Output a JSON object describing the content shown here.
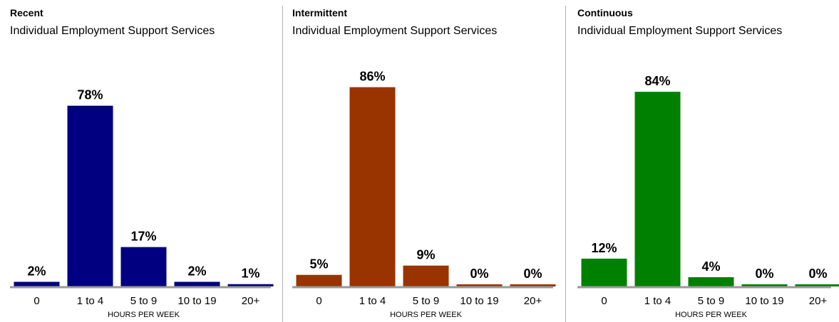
{
  "chart_data": [
    {
      "type": "bar",
      "title": "Recent",
      "subtitle": "Individual Employment Support Services",
      "categories": [
        "0",
        "1 to 4",
        "5 to 9",
        "10 to 19",
        "20+"
      ],
      "values": [
        2,
        78,
        17,
        2,
        1
      ],
      "value_labels": [
        "2%",
        "78%",
        "17%",
        "2%",
        "1%"
      ],
      "xlabel": "HOURS PER WEEK",
      "ylabel": "",
      "ylim": [
        0,
        100
      ],
      "color": "#000080",
      "grid": false
    },
    {
      "type": "bar",
      "title": "Intermittent",
      "subtitle": "Individual Employment Support Services",
      "categories": [
        "0",
        "1 to 4",
        "5 to 9",
        "10 to 19",
        "20+"
      ],
      "values": [
        5,
        86,
        9,
        0,
        0
      ],
      "value_labels": [
        "5%",
        "86%",
        "9%",
        "0%",
        "0%"
      ],
      "xlabel": "HOURS PER WEEK",
      "ylabel": "",
      "ylim": [
        0,
        100
      ],
      "color": "#993300",
      "grid": false
    },
    {
      "type": "bar",
      "title": "Continuous",
      "subtitle": "Individual Employment Support Services",
      "categories": [
        "0",
        "1 to 4",
        "5 to 9",
        "10 to 19",
        "20+"
      ],
      "values": [
        12,
        84,
        4,
        0,
        0
      ],
      "value_labels": [
        "12%",
        "84%",
        "4%",
        "0%",
        "0%"
      ],
      "xlabel": "HOURS PER WEEK",
      "ylabel": "",
      "ylim": [
        0,
        100
      ],
      "color": "#008000",
      "grid": false
    }
  ]
}
